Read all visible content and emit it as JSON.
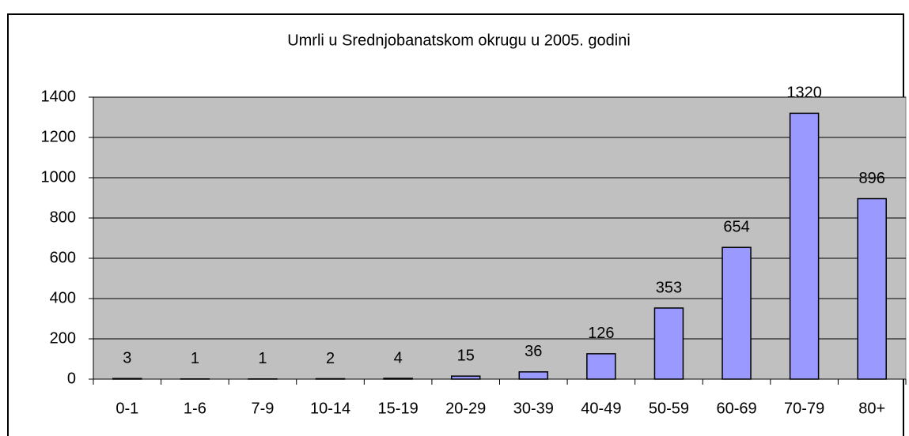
{
  "chart_data": {
    "type": "bar",
    "title": "Umrli u Srednjobanatskom okrugu u 2005. godini",
    "categories": [
      "0-1",
      "1-6",
      "7-9",
      "10-14",
      "15-19",
      "20-29",
      "30-39",
      "40-49",
      "50-59",
      "60-69",
      "70-79",
      "80+"
    ],
    "values": [
      3,
      1,
      1,
      2,
      4,
      15,
      36,
      126,
      353,
      654,
      1320,
      896
    ],
    "color": "#9999ff",
    "ylim": [
      0,
      1400
    ],
    "yticks": [
      0,
      200,
      400,
      600,
      800,
      1000,
      1200,
      1400
    ],
    "grid": true
  }
}
